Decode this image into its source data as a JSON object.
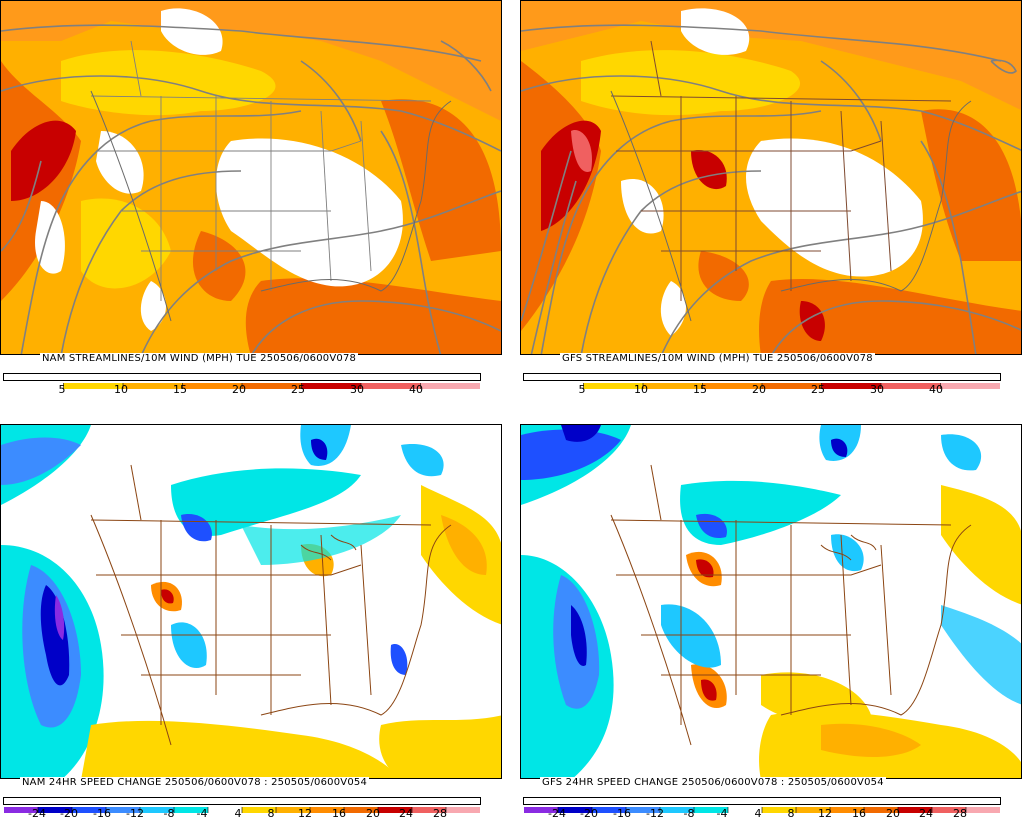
{
  "panels": [
    {
      "caption": "NAM STREAMLINES/10M WIND (MPH)  TUE 250506/0600V078",
      "colorbar": {
        "labels": [
          "5",
          "10",
          "15",
          "20",
          "25",
          "30",
          "40"
        ],
        "colors": [
          "#ffffff",
          "#ffd700",
          "#ffb000",
          "#ff8c00",
          "#f26a00",
          "#c80000",
          "#f06060",
          "#f8a8b0"
        ]
      }
    },
    {
      "caption": "GFS STREAMLINES/10M WIND (MPH)  TUE 250506/0600V078",
      "colorbar": {
        "labels": [
          "5",
          "10",
          "15",
          "20",
          "25",
          "30",
          "40"
        ],
        "colors": [
          "#ffffff",
          "#ffd700",
          "#ffb000",
          "#ff8c00",
          "#f26a00",
          "#c80000",
          "#f06060",
          "#f8a8b0"
        ]
      }
    },
    {
      "caption": "NAM 24HR SPEED CHANGE 250506/0600V078 : 250505/0600V054",
      "colorbar": {
        "labels": [
          "-24",
          "-20",
          "-16",
          "-12",
          "-8",
          "-4",
          "4",
          "8",
          "12",
          "16",
          "20",
          "24",
          "28"
        ],
        "colors": [
          "#8a2be2",
          "#0000c8",
          "#1e50ff",
          "#3c8cff",
          "#1ec8ff",
          "#00e6e6",
          "#ffffff",
          "#ffd700",
          "#ffb000",
          "#ff8c00",
          "#f26a00",
          "#c80000",
          "#f06060",
          "#f8a8b0"
        ]
      }
    },
    {
      "caption": "GFS 24HR SPEED CHANGE 250506/0600V078 : 250505/0600V054",
      "colorbar": {
        "labels": [
          "-24",
          "-20",
          "-16",
          "-12",
          "-8",
          "-4",
          "4",
          "8",
          "12",
          "16",
          "20",
          "24",
          "28"
        ],
        "colors": [
          "#8a2be2",
          "#0000c8",
          "#1e50ff",
          "#3c8cff",
          "#1ec8ff",
          "#00e6e6",
          "#ffffff",
          "#ffd700",
          "#ffb000",
          "#ff8c00",
          "#f26a00",
          "#c80000",
          "#f06060",
          "#f8a8b0"
        ]
      }
    }
  ]
}
